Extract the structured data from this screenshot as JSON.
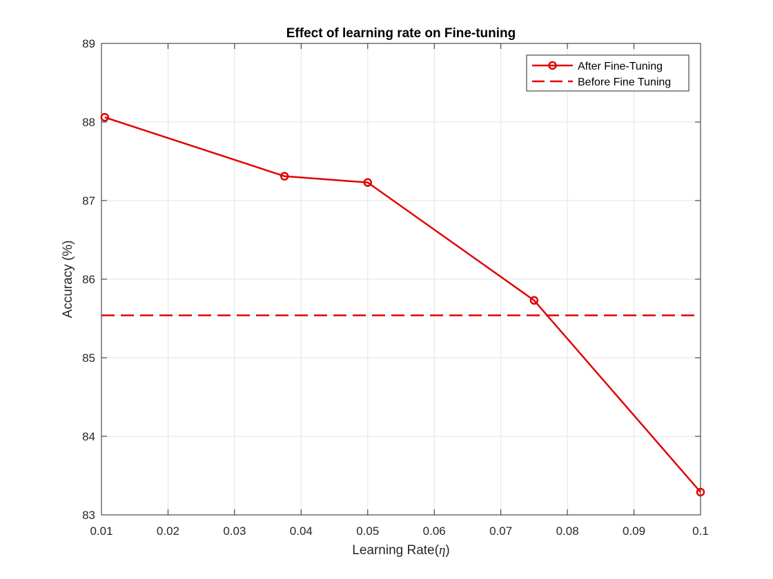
{
  "chart_data": {
    "type": "line",
    "title": "Effect of learning rate on Fine-tuning",
    "xlabel_main": "Learning Rate(",
    "xlabel_symbol": "η",
    "xlabel_close": ")",
    "ylabel": "Accuracy (%)",
    "xlim": [
      0.01,
      0.1
    ],
    "ylim": [
      83,
      89
    ],
    "xticks": [
      0.01,
      0.02,
      0.03,
      0.04,
      0.05,
      0.06,
      0.07,
      0.08,
      0.09,
      0.1
    ],
    "xtick_labels": [
      "0.01",
      "0.02",
      "0.03",
      "0.04",
      "0.05",
      "0.06",
      "0.07",
      "0.08",
      "0.09",
      "0.1"
    ],
    "yticks": [
      83,
      84,
      85,
      86,
      87,
      88,
      89
    ],
    "ytick_labels": [
      "83",
      "84",
      "85",
      "86",
      "87",
      "88",
      "89"
    ],
    "grid": true,
    "legend_position": "top-right",
    "series": [
      {
        "name": "After Fine-Tuning",
        "style": "solid-circle-markers",
        "color": "#e00000",
        "x": [
          0.0105,
          0.0375,
          0.05,
          0.075,
          0.1
        ],
        "y": [
          88.06,
          87.31,
          87.23,
          85.73,
          83.29
        ]
      },
      {
        "name": "Before Fine Tuning",
        "style": "dashed",
        "color": "#e00000",
        "x": [
          0.01,
          0.1
        ],
        "y": [
          85.54,
          85.54
        ]
      }
    ]
  }
}
